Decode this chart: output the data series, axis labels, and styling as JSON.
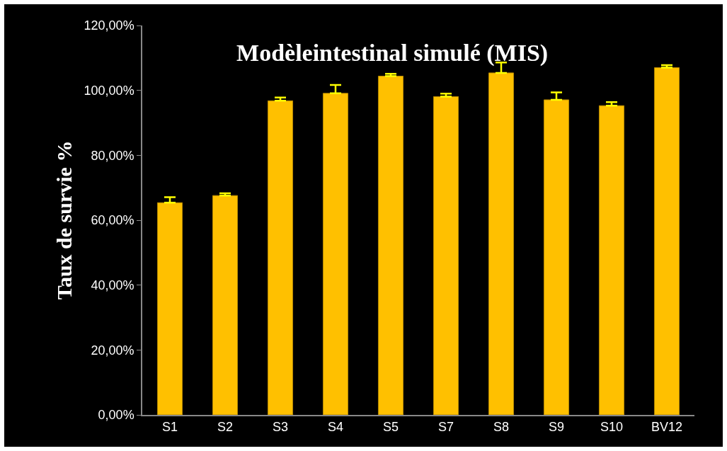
{
  "chart_data": {
    "type": "bar",
    "title": "Modèleintestinal simulé (MIS)",
    "ylabel": "Taux de survie %",
    "categories": [
      "S1",
      "S2",
      "S3",
      "S4",
      "S5",
      "S7",
      "S8",
      "S9",
      "S10",
      "BV12"
    ],
    "values": [
      65.4,
      67.6,
      96.8,
      99.1,
      104.4,
      98.1,
      105.4,
      97.1,
      95.3,
      107.0
    ],
    "errors": [
      [
        65.4,
        67.1
      ],
      [
        67.6,
        68.3
      ],
      [
        96.8,
        97.8
      ],
      [
        99.1,
        101.7
      ],
      [
        104.4,
        105.1
      ],
      [
        98.1,
        99.0
      ],
      [
        105.4,
        108.6
      ],
      [
        97.1,
        99.4
      ],
      [
        95.3,
        96.4
      ],
      [
        107.0,
        107.8
      ]
    ],
    "color": "#ffc000",
    "ylim": [
      0,
      120
    ],
    "yticks": [
      {
        "value": 0,
        "label": "0,00%"
      },
      {
        "value": 20,
        "label": "20,00%"
      },
      {
        "value": 40,
        "label": "40,00%"
      },
      {
        "value": 60,
        "label": "60,00%"
      },
      {
        "value": 80,
        "label": "80,00%"
      },
      {
        "value": 100,
        "label": "100,00%"
      },
      {
        "value": 120,
        "label": "120,00%"
      }
    ],
    "grid": false
  }
}
